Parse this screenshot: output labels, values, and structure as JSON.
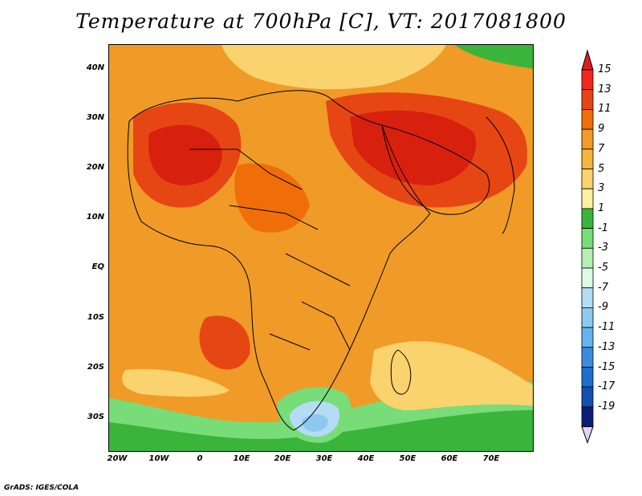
{
  "title": "Temperature at 700hPa [C], VT: 2017081800",
  "footer": "GrADS: IGES/COLA",
  "map": {
    "lat_ticks": [
      "40N",
      "30N",
      "20N",
      "10N",
      "EQ",
      "10S",
      "20S",
      "30S"
    ],
    "lon_ticks": [
      "20W",
      "10W",
      "0",
      "10E",
      "20E",
      "30E",
      "40E",
      "50E",
      "60E",
      "70E"
    ]
  },
  "colorbar": {
    "labels": [
      "15",
      "13",
      "11",
      "9",
      "7",
      "5",
      "3",
      "1",
      "-1",
      "-3",
      "-5",
      "-7",
      "-9",
      "-11",
      "-13",
      "-15",
      "-17",
      "-19"
    ],
    "colors": [
      "#f0281e",
      "#e64614",
      "#f06e0a",
      "#f09a28",
      "#f5b43c",
      "#fad26e",
      "#fff0a0",
      "#3ab43a",
      "#78dc78",
      "#b4f0b4",
      "#dcfae6",
      "#b4dcf5",
      "#8cc8f0",
      "#64b4f0",
      "#3c8cdc",
      "#1e6ecd",
      "#1450b4",
      "#0a1e78"
    ],
    "top_arrow_color": "#dc1e1e",
    "bottom_arrow_color": "#e6d2fa"
  }
}
